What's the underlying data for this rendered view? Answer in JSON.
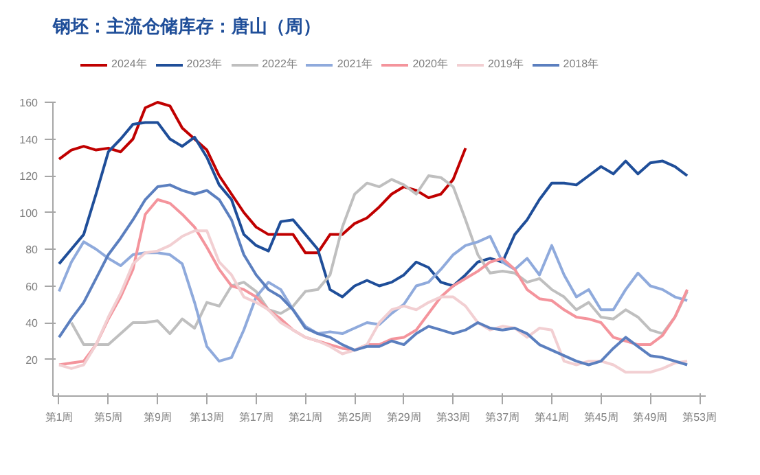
{
  "chart_data": {
    "type": "line",
    "title": "钢坯：主流仓储库存：唐山（周）",
    "legend": "top",
    "grid": false,
    "marker": "none",
    "line_style": "solid",
    "categories": [
      "第1周",
      null,
      null,
      null,
      "第5周",
      null,
      null,
      null,
      "第9周",
      null,
      null,
      null,
      "第13周",
      null,
      null,
      null,
      "第17周",
      null,
      null,
      null,
      "第21周",
      null,
      null,
      null,
      "第25周",
      null,
      null,
      null,
      "第29周",
      null,
      null,
      null,
      "第33周",
      null,
      null,
      null,
      "第37周",
      null,
      null,
      null,
      "第41周",
      null,
      null,
      null,
      "第45周",
      null,
      null,
      null,
      "第49周",
      null,
      null,
      null,
      "第53周"
    ],
    "ylim": [
      0,
      160
    ],
    "yticks": [
      20,
      40,
      60,
      80,
      100,
      120,
      140,
      160
    ],
    "series": [
      {
        "name": "2024年",
        "color": "#c00000",
        "values": [
          129,
          134,
          136,
          134,
          135,
          133,
          140,
          157,
          160,
          158,
          146,
          140,
          134,
          120,
          110,
          100,
          92,
          88,
          88,
          88,
          78,
          78,
          88,
          88,
          94,
          97,
          103,
          110,
          114,
          112,
          108,
          110,
          118,
          135,
          null,
          null,
          null,
          null,
          null,
          null,
          null,
          null,
          null,
          null,
          null,
          null,
          null,
          null,
          null,
          null,
          null,
          null,
          null
        ]
      },
      {
        "name": "2023年",
        "color": "#1f4e99",
        "values": [
          72,
          80,
          88,
          110,
          133,
          140,
          148,
          149,
          149,
          140,
          136,
          141,
          130,
          115,
          107,
          88,
          82,
          79,
          95,
          96,
          88,
          80,
          58,
          54,
          60,
          63,
          60,
          62,
          66,
          73,
          70,
          62,
          60,
          66,
          73,
          75,
          73,
          88,
          96,
          107,
          116,
          116,
          115,
          120,
          125,
          121,
          128,
          121,
          127,
          128,
          125,
          120,
          null
        ]
      },
      {
        "name": "2022年",
        "color": "#bfbfbf",
        "values": [
          null,
          40,
          28,
          28,
          28,
          34,
          40,
          40,
          41,
          34,
          42,
          37,
          51,
          49,
          60,
          62,
          57,
          47,
          45,
          49,
          57,
          58,
          66,
          92,
          110,
          116,
          114,
          118,
          115,
          110,
          120,
          119,
          114,
          96,
          77,
          67,
          68,
          67,
          62,
          64,
          58,
          54,
          47,
          51,
          43,
          42,
          47,
          43,
          36,
          34,
          43,
          57,
          null
        ]
      },
      {
        "name": "2021年",
        "color": "#8faadc",
        "values": [
          57,
          73,
          84,
          80,
          75,
          71,
          77,
          78,
          78,
          77,
          72,
          51,
          27,
          19,
          21,
          36,
          54,
          62,
          58,
          47,
          38,
          34,
          35,
          34,
          37,
          40,
          39,
          45,
          50,
          60,
          62,
          69,
          77,
          82,
          84,
          87,
          73,
          69,
          75,
          66,
          82,
          66,
          54,
          58,
          47,
          47,
          58,
          67,
          60,
          58,
          54,
          52,
          null
        ]
      },
      {
        "name": "2020年",
        "color": "#f4949c",
        "values": [
          17,
          18,
          19,
          28,
          42,
          54,
          69,
          99,
          107,
          105,
          99,
          92,
          81,
          69,
          60,
          58,
          54,
          47,
          42,
          36,
          32,
          30,
          28,
          26,
          25,
          28,
          28,
          31,
          32,
          36,
          45,
          54,
          60,
          64,
          68,
          73,
          75,
          69,
          58,
          53,
          52,
          47,
          43,
          42,
          40,
          32,
          30,
          28,
          28,
          33,
          43,
          58,
          null
        ]
      },
      {
        "name": "2019年",
        "color": "#f2cfd2",
        "values": [
          17,
          15,
          17,
          28,
          43,
          56,
          72,
          78,
          79,
          82,
          87,
          90,
          90,
          73,
          66,
          54,
          51,
          47,
          40,
          36,
          32,
          30,
          27,
          23,
          25,
          28,
          40,
          47,
          49,
          47,
          51,
          54,
          54,
          49,
          40,
          36,
          38,
          37,
          32,
          37,
          36,
          19,
          17,
          19,
          19,
          17,
          13,
          13,
          13,
          15,
          18,
          19,
          null
        ]
      },
      {
        "name": "2018年",
        "color": "#5b7fbf",
        "values": [
          32,
          42,
          51,
          64,
          77,
          86,
          96,
          107,
          114,
          115,
          112,
          110,
          112,
          107,
          96,
          77,
          66,
          58,
          54,
          47,
          37,
          34,
          32,
          28,
          25,
          27,
          27,
          30,
          28,
          34,
          38,
          36,
          34,
          36,
          40,
          37,
          36,
          37,
          34,
          28,
          25,
          22,
          19,
          17,
          19,
          26,
          32,
          27,
          22,
          21,
          19,
          17,
          null
        ]
      }
    ]
  }
}
